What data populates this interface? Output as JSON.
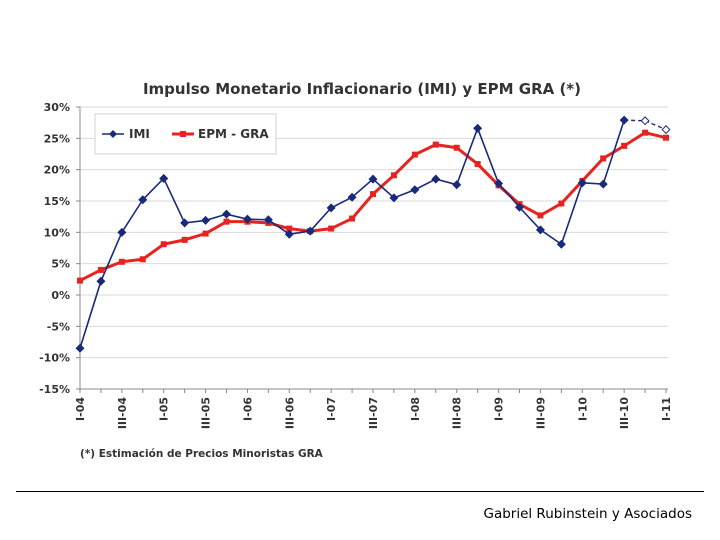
{
  "chart_data": {
    "type": "line",
    "title": "Impulso Monetario Inflacionario (IMI) y EPM GRA (*)",
    "ylim": [
      -15,
      30
    ],
    "y_ticks": [
      "30%",
      "25%",
      "20%",
      "15%",
      "10%",
      "5%",
      "0%",
      "-5%",
      "-10%",
      "-15%"
    ],
    "categories": [
      "I-04",
      "II-04",
      "III-04",
      "IV-04",
      "I-05",
      "II-05",
      "III-05",
      "IV-05",
      "I-06",
      "II-06",
      "III-06",
      "IV-06",
      "I-07",
      "II-07",
      "III-07",
      "IV-07",
      "I-08",
      "II-08",
      "III-08",
      "IV-08",
      "I-09",
      "II-09",
      "III-09",
      "IV-09",
      "I-10",
      "II-10",
      "III-10",
      "IV-10",
      "I-11"
    ],
    "x_tick_labels": [
      "I-04",
      "III-04",
      "I-05",
      "III-05",
      "I-06",
      "III-06",
      "I-07",
      "III-07",
      "I-08",
      "III-08",
      "I-09",
      "III-09",
      "I-10",
      "III-10",
      "I-11"
    ],
    "series": [
      {
        "name": "IMI",
        "color": "#1a2a7a",
        "values": [
          -8.5,
          2.2,
          10.0,
          15.2,
          18.6,
          11.5,
          11.9,
          12.9,
          12.1,
          12.0,
          9.7,
          10.2,
          13.9,
          15.6,
          18.5,
          15.5,
          16.8,
          18.5,
          17.6,
          26.6,
          17.8,
          14.0,
          10.4,
          8.1,
          17.9,
          17.7,
          27.9,
          27.8,
          26.4
        ],
        "projected_from_index": 26
      },
      {
        "name": "EPM - GRA",
        "color": "#e8221e",
        "values": [
          2.3,
          4.0,
          5.3,
          5.7,
          8.1,
          8.8,
          9.8,
          11.7,
          11.7,
          11.5,
          10.6,
          10.2,
          10.6,
          12.2,
          16.1,
          19.1,
          22.4,
          24.0,
          23.5,
          20.9,
          17.5,
          14.5,
          12.7,
          14.6,
          18.2,
          21.8,
          23.8,
          25.9,
          25.1
        ]
      }
    ],
    "legend": {
      "placement": "top-left",
      "entries": [
        "IMI",
        "EPM - GRA"
      ]
    },
    "grid": true,
    "footnote": "(*) Estimación de Precios Minoristas GRA"
  },
  "footer": {
    "text": "Gabriel Rubinstein y Asociados"
  }
}
